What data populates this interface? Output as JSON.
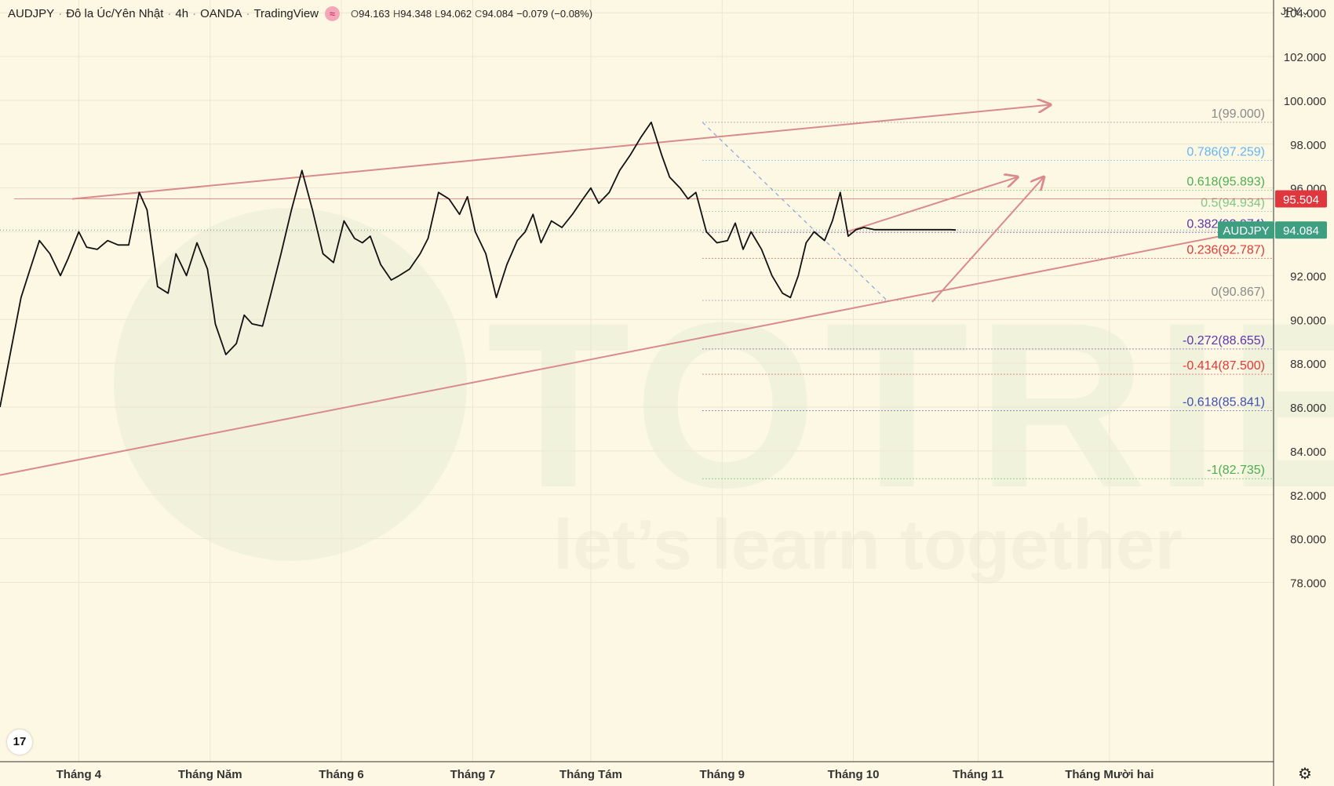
{
  "header": {
    "symbol": "AUDJPY",
    "description": "Đô la Úc/Yên Nhật",
    "interval": "4h",
    "broker": "OANDA",
    "platform": "TradingView",
    "badge": "≈",
    "open_label": "O",
    "open": "94.163",
    "high_label": "H",
    "high": "94.348",
    "low_label": "L",
    "low": "94.062",
    "close_label": "C",
    "close": "94.084",
    "change": "−0.079 (−0.08%)"
  },
  "axis": {
    "currency": "JPY",
    "currency_caret": "⌄"
  },
  "logo": {
    "text": "17"
  },
  "settings_icon": "gear-icon",
  "chart_data": {
    "type": "line",
    "symbol": "AUDJPY",
    "interval": "4h",
    "ylim": [
      77,
      105
    ],
    "ytick_values": [
      78,
      80,
      82,
      84,
      86,
      88,
      90,
      92,
      94,
      96,
      98,
      100,
      102,
      104
    ],
    "ytick_labels": [
      "78.000",
      "80.000",
      "82.000",
      "84.000",
      "86.000",
      "88.000",
      "90.000",
      "92.000",
      "94.000",
      "96.000",
      "98.000",
      "100.000",
      "102.000",
      "104.000"
    ],
    "xlim": [
      0,
      9.7
    ],
    "xtick_values": [
      0.6,
      1.6,
      2.6,
      3.6,
      4.5,
      5.5,
      6.5,
      7.45,
      8.45
    ],
    "xtick_labels": [
      "Tháng 4",
      "Tháng Năm",
      "Tháng 6",
      "Tháng 7",
      "Tháng Tám",
      "Tháng 9",
      "Tháng 10",
      "Tháng 11",
      "Tháng Mười hai"
    ],
    "price_x": [
      0.0,
      0.08,
      0.16,
      0.24,
      0.3,
      0.38,
      0.46,
      0.52,
      0.6,
      0.66,
      0.74,
      0.82,
      0.9,
      0.98,
      1.06,
      1.12,
      1.2,
      1.28,
      1.34,
      1.42,
      1.5,
      1.58,
      1.64,
      1.72,
      1.8,
      1.86,
      1.92,
      2.0,
      2.06,
      2.14,
      2.22,
      2.3,
      2.38,
      2.46,
      2.54,
      2.62,
      2.7,
      2.76,
      2.82,
      2.9,
      2.98,
      3.04,
      3.12,
      3.2,
      3.26,
      3.34,
      3.42,
      3.5,
      3.56,
      3.62,
      3.7,
      3.78,
      3.86,
      3.94,
      4.0,
      4.06,
      4.12,
      4.2,
      4.28,
      4.36,
      4.44,
      4.5,
      4.56,
      4.64,
      4.72,
      4.8,
      4.88,
      4.96,
      5.04,
      5.1,
      5.18,
      5.24,
      5.3,
      5.38,
      5.46,
      5.54,
      5.6,
      5.66,
      5.72,
      5.8,
      5.88,
      5.96,
      6.02,
      6.08,
      6.14,
      6.2,
      6.28,
      6.34,
      6.4,
      6.46,
      6.52,
      6.58,
      6.66,
      6.72,
      6.78,
      6.84,
      6.9,
      6.96,
      7.02,
      7.08,
      7.14,
      7.2,
      7.24,
      7.28
    ],
    "price_y": [
      86.0,
      88.5,
      91.0,
      92.5,
      93.6,
      93.0,
      92.0,
      92.8,
      94.0,
      93.3,
      93.2,
      93.6,
      93.4,
      93.4,
      95.8,
      95.0,
      91.5,
      91.2,
      93.0,
      92.0,
      93.5,
      92.3,
      89.8,
      88.4,
      88.9,
      90.2,
      89.8,
      89.7,
      91.1,
      93.0,
      95.0,
      96.8,
      95.0,
      93.0,
      92.6,
      94.5,
      93.7,
      93.5,
      93.8,
      92.5,
      91.8,
      92.0,
      92.3,
      93.0,
      93.7,
      95.8,
      95.5,
      94.8,
      95.6,
      94.0,
      93.0,
      91.0,
      92.5,
      93.6,
      94.0,
      94.8,
      93.5,
      94.5,
      94.2,
      94.8,
      95.5,
      96.0,
      95.3,
      95.8,
      96.8,
      97.5,
      98.3,
      99.0,
      97.5,
      96.5,
      96.0,
      95.5,
      95.8,
      94.0,
      93.5,
      93.6,
      94.4,
      93.2,
      94.0,
      93.2,
      92.0,
      91.2,
      91.0,
      92.0,
      93.5,
      94.0,
      93.6,
      94.5,
      95.8,
      93.8,
      94.1,
      94.2,
      94.1,
      94.1,
      94.1,
      94.1,
      94.1,
      94.1,
      94.1,
      94.1,
      94.1,
      94.1,
      94.1,
      94.084
    ],
    "price_label": "AUDJPY",
    "price_value": "94.084",
    "level_value": 95.504,
    "level_label": "95.504",
    "fibonacci": [
      {
        "ratio": "1",
        "value": "99.000",
        "price": 99.0,
        "color": "#8a8a8a"
      },
      {
        "ratio": "0.786",
        "value": "97.259",
        "price": 97.259,
        "color": "#64b5f6"
      },
      {
        "ratio": "0.618",
        "value": "95.893",
        "price": 95.893,
        "color": "#4caf50"
      },
      {
        "ratio": "0.5",
        "value": "94.934",
        "price": 94.934,
        "color": "#81c784"
      },
      {
        "ratio": "0.382",
        "value": "93.974",
        "price": 93.974,
        "color": "#5e35b1"
      },
      {
        "ratio": "0.236",
        "value": "92.787",
        "price": 92.787,
        "color": "#e53935"
      },
      {
        "ratio": "0",
        "value": "90.867",
        "price": 90.867,
        "color": "#8a8a8a"
      },
      {
        "ratio": "-0.272",
        "value": "88.655",
        "price": 88.655,
        "color": "#5e35b1"
      },
      {
        "ratio": "-0.414",
        "value": "87.500",
        "price": 87.5,
        "color": "#e53935"
      },
      {
        "ratio": "-0.618",
        "value": "85.841",
        "price": 85.841,
        "color": "#3f51b5"
      },
      {
        "ratio": "-1",
        "value": "82.735",
        "price": 82.735,
        "color": "#4caf50"
      }
    ],
    "trendlines": [
      {
        "name": "upper-channel",
        "x1": 0.55,
        "y1": 95.5,
        "x2": 8.0,
        "y2": 99.8,
        "arrow": true
      },
      {
        "name": "lower-channel",
        "x1": 0.0,
        "y1": 82.9,
        "x2": 9.55,
        "y2": 94.1,
        "arrow": false
      },
      {
        "name": "minor-upper-line",
        "x1": 6.45,
        "y1": 94.0,
        "x2": 7.75,
        "y2": 96.5,
        "arrow": true
      },
      {
        "name": "minor-lower-line",
        "x1": 7.1,
        "y1": 90.8,
        "x2": 7.95,
        "y2": 96.5,
        "arrow": true
      },
      {
        "name": "fib-anchor-line",
        "x1": 5.35,
        "y1": 99.0,
        "x2": 6.75,
        "y2": 90.9,
        "arrow": false,
        "dashed": true
      }
    ],
    "colors": {
      "candles": "#111111",
      "lines": "#d98a8a",
      "level": "#e0373f",
      "price": "#3e9e80",
      "fib_anchor": "#8da2e0"
    },
    "grid": true
  }
}
